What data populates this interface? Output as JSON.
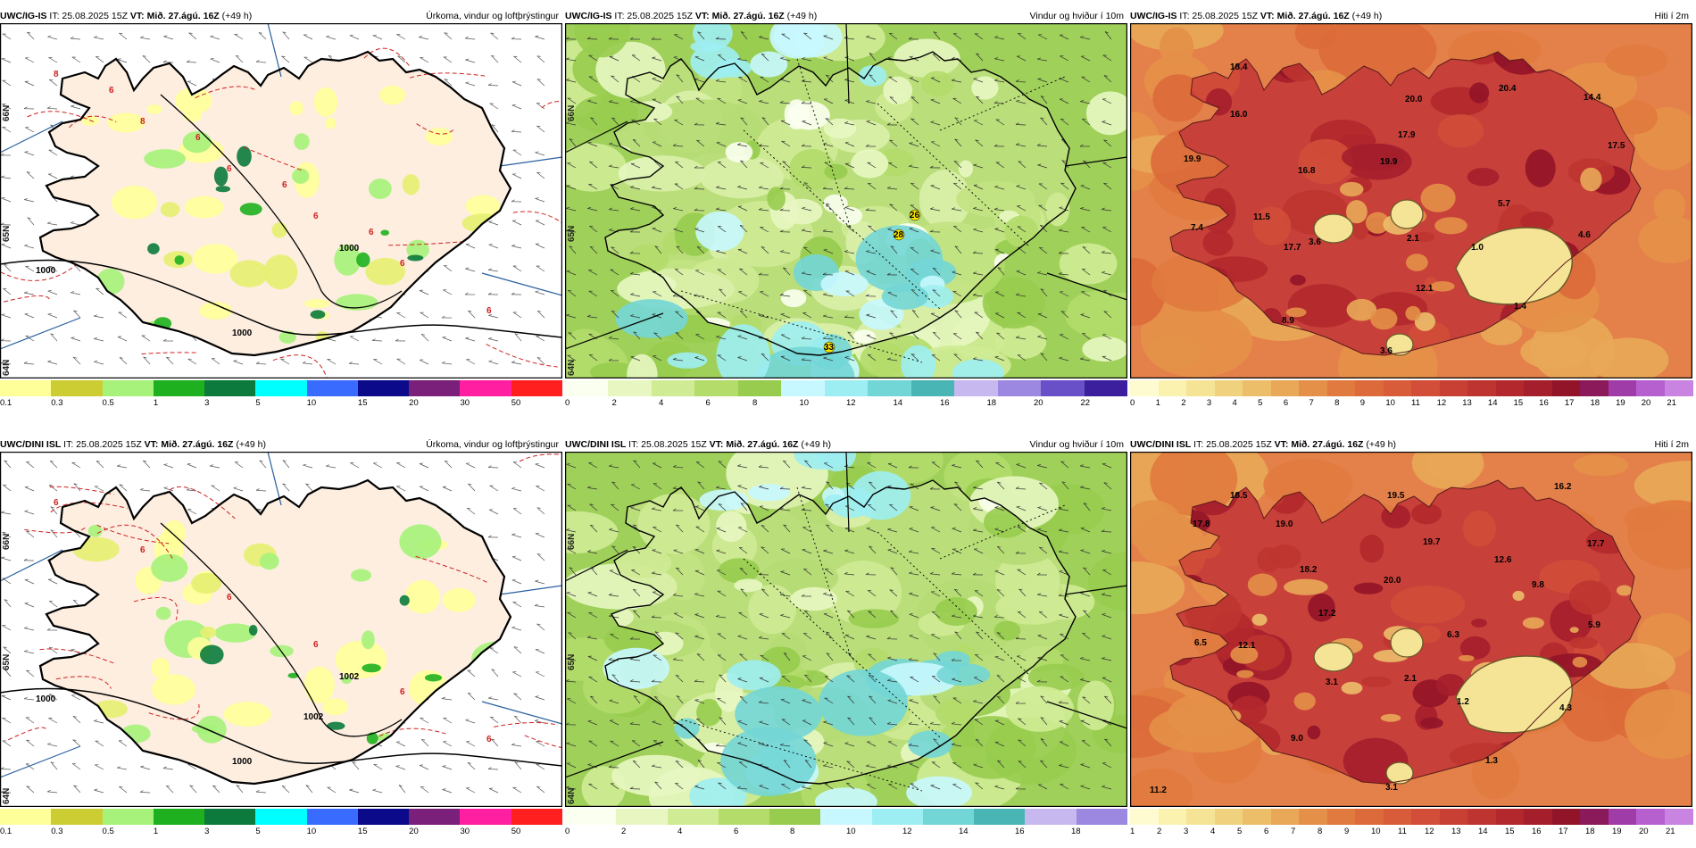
{
  "rows": [
    {
      "panels": [
        {
          "id": "r1p1",
          "model": "UWC/IG-IS",
          "it": "IT: 25.08.2025 15Z",
          "vt_label": "VT:",
          "vt": "Mið. 27.ágú. 16Z",
          "lead": "(+49 h)",
          "title": "Úrkoma, vindur og loftþrýstingur",
          "type": "precip",
          "colorbar": {
            "colors": [
              "#ffff99",
              "#cccc33",
              "#a6f27a",
              "#1fb01f",
              "#0b7a3c",
              "#00ffff",
              "#3a6bff",
              "#0a0a8a",
              "#7a1f7a",
              "#ff1fa0",
              "#ff1f1f"
            ],
            "ticks": [
              "0.1",
              "0.3",
              "0.5",
              "1",
              "3",
              "5",
              "10",
              "15",
              "20",
              "30",
              "50"
            ]
          },
          "isobar_labels": [
            "1000",
            "1000",
            "1000"
          ],
          "temp_contour_labels": [
            "8",
            "8",
            "6",
            "6",
            "6",
            "6",
            "6",
            "6",
            "6",
            "6"
          ],
          "lat_labels": [
            "66N",
            "65N",
            "64N"
          ]
        },
        {
          "id": "r1p2",
          "model": "UWC/IG-IS",
          "it": "IT: 25.08.2025 15Z",
          "vt_label": "VT:",
          "vt": "Mið. 27.ágú. 16Z",
          "lead": "(+49 h)",
          "title": "Vindur og hviður í 10m",
          "type": "wind",
          "colorbar": {
            "colors": [
              "#fbfff0",
              "#e8f7c2",
              "#cfeb94",
              "#b3dc6a",
              "#97cc4e",
              "#c8f8ff",
              "#9deef2",
              "#73d6d6",
              "#4ab5b5",
              "#c8b8f0",
              "#9c88e0",
              "#6a50c8",
              "#3c1f9c"
            ],
            "ticks": [
              "0",
              "2",
              "4",
              "6",
              "8",
              "10",
              "12",
              "14",
              "16",
              "18",
              "20",
              "22"
            ]
          },
          "gust_labels": [
            "26",
            "28",
            "33"
          ],
          "lat_labels": [
            "66N",
            "65N",
            "64N"
          ]
        },
        {
          "id": "r1p3",
          "model": "UWC/IG-IS",
          "it": "IT: 25.08.2025 15Z",
          "vt_label": "VT:",
          "vt": "Mið. 27.ágú. 16Z",
          "lead": "(+49 h)",
          "title": "Hiti í 2m",
          "type": "temp",
          "colorbar": {
            "colors": [
              "#fffbd0",
              "#fbf2b0",
              "#f5e496",
              "#f0d27e",
              "#ecbe6a",
              "#e8a858",
              "#e49048",
              "#e07a3e",
              "#dc6a3a",
              "#d85c3a",
              "#d24e38",
              "#c84034",
              "#be3430",
              "#b2282c",
              "#a41e2c",
              "#921428",
              "#8a1a5a",
              "#a03ca8",
              "#b660d0",
              "#c884e0"
            ],
            "ticks": [
              "0",
              "1",
              "2",
              "3",
              "4",
              "5",
              "6",
              "7",
              "8",
              "9",
              "10",
              "11",
              "12",
              "13",
              "14",
              "15",
              "16",
              "17",
              "18",
              "19",
              "20",
              "21"
            ]
          },
          "temp_labels": [
            "18.4",
            "16.0",
            "19.9",
            "20.0",
            "20.4",
            "14.4",
            "17.9",
            "17.5",
            "19.9",
            "16.8",
            "5.7",
            "11.5",
            "7.4",
            "17.7",
            "3.6",
            "2.1",
            "1.0",
            "4.6",
            "12.1",
            "8.9",
            "1.4",
            "3.6"
          ]
        }
      ]
    },
    {
      "panels": [
        {
          "id": "r2p1",
          "model": "UWC/DINI ISL",
          "it": "IT: 25.08.2025 15Z",
          "vt_label": "VT:",
          "vt": "Mið. 27.ágú. 16Z",
          "lead": "(+49 h)",
          "title": "Úrkoma, vindur og loftþrýstingur",
          "type": "precip",
          "colorbar": {
            "colors": [
              "#ffff99",
              "#cccc33",
              "#a6f27a",
              "#1fb01f",
              "#0b7a3c",
              "#00ffff",
              "#3a6bff",
              "#0a0a8a",
              "#7a1f7a",
              "#ff1fa0",
              "#ff1f1f"
            ],
            "ticks": [
              "0.1",
              "0.3",
              "0.5",
              "1",
              "3",
              "5",
              "10",
              "15",
              "20",
              "30",
              "50"
            ]
          },
          "isobar_labels": [
            "1000",
            "1000",
            "1002",
            "1002"
          ],
          "temp_contour_labels": [
            "6",
            "6",
            "6",
            "6",
            "6",
            "6"
          ],
          "lat_labels": [
            "66N",
            "65N",
            "64N"
          ]
        },
        {
          "id": "r2p2",
          "model": "UWC/DINI ISL",
          "it": "IT: 25.08.2025 15Z",
          "vt_label": "VT:",
          "vt": "Mið. 27.ágú. 16Z",
          "lead": "(+49 h)",
          "title": "Vindur og hviður í 10m",
          "type": "wind",
          "colorbar": {
            "colors": [
              "#fbfff0",
              "#e8f7c2",
              "#cfeb94",
              "#b3dc6a",
              "#97cc4e",
              "#c8f8ff",
              "#9deef2",
              "#73d6d6",
              "#4ab5b5",
              "#c8b8f0",
              "#9c88e0"
            ],
            "ticks": [
              "0",
              "2",
              "4",
              "6",
              "8",
              "10",
              "12",
              "14",
              "16",
              "18"
            ]
          },
          "gust_labels": [],
          "lat_labels": [
            "66N",
            "65N",
            "64N"
          ]
        },
        {
          "id": "r2p3",
          "model": "UWC/DINI ISL",
          "it": "IT: 25.08.2025 15Z",
          "vt_label": "VT:",
          "vt": "Mið. 27.ágú. 16Z",
          "lead": "(+49 h)",
          "title": "Hiti í 2m",
          "type": "temp",
          "colorbar": {
            "colors": [
              "#fffbd0",
              "#fbf2b0",
              "#f5e496",
              "#f0d27e",
              "#ecbe6a",
              "#e8a858",
              "#e49048",
              "#e07a3e",
              "#dc6a3a",
              "#d85c3a",
              "#d24e38",
              "#c84034",
              "#be3430",
              "#b2282c",
              "#a41e2c",
              "#921428",
              "#8a1a5a",
              "#a03ca8",
              "#b660d0",
              "#c884e0"
            ],
            "ticks": [
              "1",
              "2",
              "3",
              "4",
              "5",
              "6",
              "7",
              "8",
              "9",
              "10",
              "11",
              "12",
              "13",
              "14",
              "15",
              "16",
              "17",
              "18",
              "19",
              "20",
              "21"
            ]
          },
          "temp_labels": [
            "18.5",
            "19.5",
            "16.2",
            "17.8",
            "19.0",
            "19.7",
            "12.6",
            "17.7",
            "18.2",
            "20.0",
            "9.8",
            "17.2",
            "6.5",
            "12.1",
            "6.3",
            "5.9",
            "3.1",
            "2.1",
            "1.2",
            "4.3",
            "9.0",
            "1.3",
            "3.1",
            "11.2"
          ]
        }
      ]
    }
  ]
}
